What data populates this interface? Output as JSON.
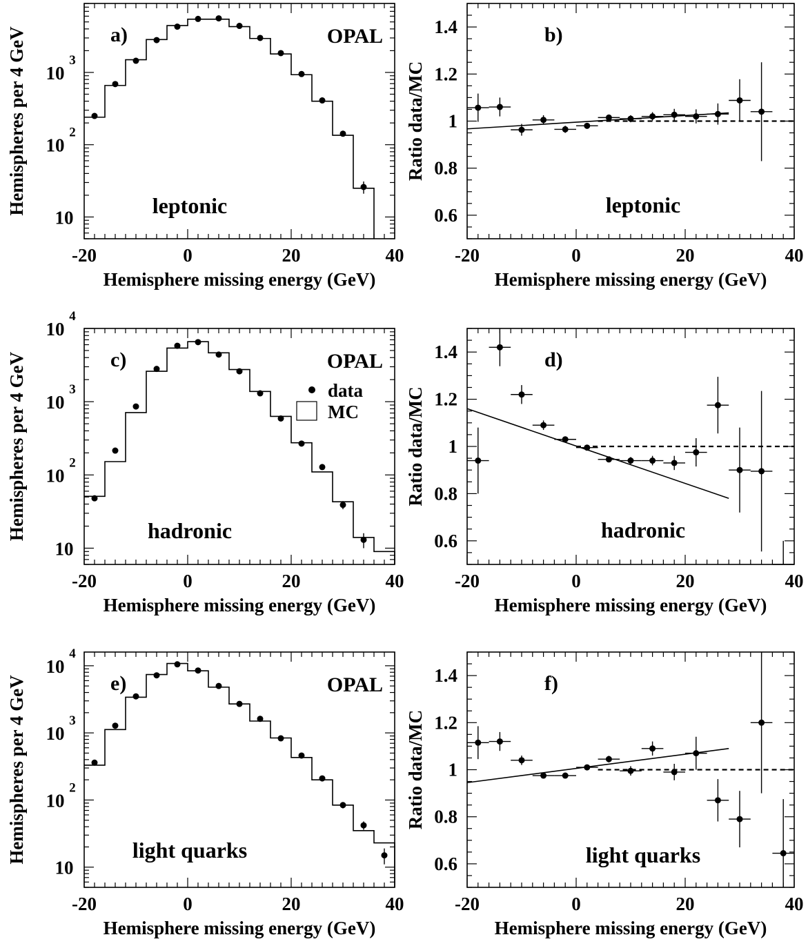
{
  "figure": {
    "x_label": "Hemisphere missing energy (GeV)",
    "y_label_left": "Hemispheres per 4 GeV",
    "y_label_right": "Ratio data/MC",
    "x_tick_labels": [
      "-20",
      "0",
      "20",
      "40"
    ],
    "log_tick_labels": {
      "ten": "10",
      "exp2": "2",
      "exp3": "3",
      "exp4": "4"
    },
    "ratio_tick_labels": [
      "0.6",
      "0.8",
      "1",
      "1.2",
      "1.4"
    ],
    "experiment_label": "OPAL",
    "legend": {
      "data": "data",
      "mc": "MC"
    }
  },
  "chart_data": [
    {
      "id": "a",
      "type": "histogram",
      "panel_label": "a)",
      "category": "leptonic",
      "scale": "log",
      "xlim": [
        -20,
        40
      ],
      "ylim": [
        5,
        9000
      ],
      "x": [
        -18,
        -14,
        -10,
        -6,
        -2,
        2,
        6,
        10,
        14,
        18,
        22,
        26,
        30,
        34
      ],
      "data": [
        250,
        690,
        1450,
        2800,
        4300,
        5500,
        5600,
        4400,
        3000,
        1850,
        950,
        410,
        142,
        26
      ],
      "data_err": [
        14,
        26,
        38,
        53,
        66,
        74,
        75,
        66,
        55,
        43,
        31,
        20,
        12,
        5
      ],
      "mc_edges": [
        -20,
        -16,
        -12,
        -8,
        -4,
        0,
        4,
        8,
        12,
        16,
        20,
        24,
        28,
        32,
        36
      ],
      "mc": [
        240,
        660,
        1500,
        2850,
        4450,
        5450,
        5450,
        4300,
        2950,
        1800,
        930,
        400,
        135,
        25
      ],
      "show_opal": true,
      "show_legend": false
    },
    {
      "id": "b",
      "type": "ratio",
      "panel_label": "b)",
      "category": "leptonic",
      "xlim": [
        -20,
        40
      ],
      "ylim": [
        0.5,
        1.5
      ],
      "x": [
        -18,
        -14,
        -10,
        -6,
        -2,
        2,
        6,
        10,
        14,
        18,
        22,
        26,
        30,
        34
      ],
      "values": [
        1.057,
        1.06,
        0.963,
        1.005,
        0.965,
        0.98,
        1.015,
        1.01,
        1.02,
        1.027,
        1.02,
        1.03,
        1.088,
        1.04
      ],
      "errors": [
        0.06,
        0.04,
        0.025,
        0.02,
        0.015,
        0.012,
        0.012,
        0.015,
        0.018,
        0.025,
        0.03,
        0.045,
        0.09,
        0.21
      ],
      "fit": {
        "x": [
          -20,
          28
        ],
        "y": [
          0.967,
          1.035
        ]
      },
      "reference": {
        "x": [
          4,
          40
        ],
        "y": [
          1,
          1
        ]
      }
    },
    {
      "id": "c",
      "type": "histogram",
      "panel_label": "c)",
      "category": "hadronic",
      "scale": "log",
      "xlim": [
        -20,
        40
      ],
      "ylim": [
        6,
        10000
      ],
      "x": [
        -18,
        -14,
        -10,
        -6,
        -2,
        2,
        6,
        10,
        14,
        18,
        22,
        26,
        30,
        34
      ],
      "data": [
        48,
        215,
        860,
        2800,
        5800,
        6500,
        4400,
        2600,
        1300,
        590,
        268,
        128,
        39,
        13
      ],
      "data_err": [
        4,
        12,
        25,
        45,
        68,
        72,
        60,
        45,
        32,
        22,
        14,
        10,
        5,
        3
      ],
      "mc_edges": [
        -20,
        -16,
        -12,
        -8,
        -4,
        0,
        4,
        8,
        12,
        16,
        20,
        24,
        28,
        32,
        36,
        40
      ],
      "mc": [
        51,
        152,
        710,
        2600,
        5400,
        6600,
        4650,
        2750,
        1380,
        630,
        275,
        110,
        43,
        14,
        9
      ],
      "show_opal": true,
      "show_legend": true
    },
    {
      "id": "d",
      "type": "ratio",
      "panel_label": "d)",
      "category": "hadronic",
      "xlim": [
        -20,
        40
      ],
      "ylim": [
        0.5,
        1.5
      ],
      "x": [
        -18,
        -14,
        -10,
        -6,
        -2,
        2,
        6,
        10,
        14,
        18,
        22,
        26,
        30,
        34,
        38
      ],
      "values": [
        0.94,
        1.42,
        1.22,
        1.09,
        1.03,
        0.995,
        0.945,
        0.94,
        0.94,
        0.93,
        0.975,
        1.175,
        0.9,
        0.895,
        0.4
      ],
      "errors": [
        0.14,
        0.08,
        0.04,
        0.02,
        0.012,
        0.01,
        0.012,
        0.015,
        0.02,
        0.03,
        0.06,
        0.12,
        0.18,
        0.34,
        0.2
      ],
      "fit": {
        "x": [
          -20,
          28
        ],
        "y": [
          1.16,
          0.78
        ]
      },
      "reference": {
        "x": [
          0,
          40
        ],
        "y": [
          1,
          1
        ]
      }
    },
    {
      "id": "e",
      "type": "histogram",
      "panel_label": "e)",
      "category": "light quarks",
      "scale": "log",
      "xlim": [
        -20,
        40
      ],
      "ylim": [
        5,
        16000
      ],
      "x": [
        -18,
        -14,
        -10,
        -6,
        -2,
        2,
        6,
        10,
        14,
        18,
        22,
        26,
        30,
        34,
        38
      ],
      "data": [
        360,
        1280,
        3500,
        7200,
        10500,
        8500,
        5000,
        2700,
        1620,
        830,
        460,
        210,
        84,
        42,
        15
      ],
      "data_err": [
        19,
        36,
        59,
        85,
        102,
        92,
        71,
        52,
        40,
        29,
        21,
        14,
        9,
        6,
        4
      ],
      "mc_edges": [
        -20,
        -16,
        -12,
        -8,
        -4,
        0,
        4,
        8,
        12,
        16,
        20,
        24,
        28,
        32,
        36,
        40
      ],
      "mc": [
        330,
        1120,
        3400,
        7400,
        10800,
        8400,
        4800,
        2700,
        1500,
        840,
        430,
        200,
        84,
        35,
        23
      ],
      "show_opal": true,
      "show_legend": false
    },
    {
      "id": "f",
      "type": "ratio",
      "panel_label": "f)",
      "category": "light quarks",
      "xlim": [
        -20,
        40
      ],
      "ylim": [
        0.5,
        1.5
      ],
      "x": [
        -18,
        -14,
        -10,
        -6,
        -2,
        2,
        6,
        10,
        14,
        18,
        22,
        26,
        30,
        34,
        38
      ],
      "values": [
        1.115,
        1.12,
        1.04,
        0.975,
        0.975,
        1.01,
        1.045,
        0.995,
        1.09,
        0.99,
        1.07,
        0.87,
        0.79,
        1.2,
        0.645
      ],
      "errors": [
        0.07,
        0.04,
        0.02,
        0.012,
        0.01,
        0.01,
        0.014,
        0.02,
        0.03,
        0.035,
        0.07,
        0.09,
        0.12,
        0.3,
        0.23
      ],
      "fit": {
        "x": [
          -20,
          28
        ],
        "y": [
          0.945,
          1.09
        ]
      },
      "reference": {
        "x": [
          4,
          40
        ],
        "y": [
          1,
          1
        ]
      }
    }
  ]
}
